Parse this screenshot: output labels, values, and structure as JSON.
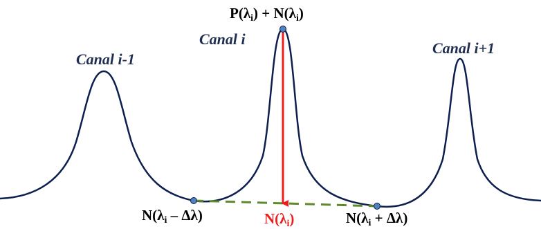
{
  "colors": {
    "spectrum_curve": "#0d1f4f",
    "channel_label": "#1f2d4f",
    "signal_arrow": "#ee1c1c",
    "noise_line": "#5e8a2c",
    "marker": "#4f81bd",
    "text": "#000000",
    "noise_label": "#ee1c1c"
  },
  "channels": [
    {
      "label": "Canal i-1"
    },
    {
      "label": "Canal i"
    },
    {
      "label": "Canal i+1"
    }
  ],
  "annotations": {
    "peak": {
      "p_open": "P(λ",
      "p_sub": "i",
      "p_close": ")",
      "plus": " + ",
      "n_open": "N(λ",
      "n_sub": "i",
      "n_close": ")"
    },
    "noise_left": {
      "open": "N(λ",
      "sub": "i",
      "rest": " – Δλ)"
    },
    "noise_center": {
      "open": "N(λ",
      "sub": "i",
      "close": ")"
    },
    "noise_right": {
      "open": "N(λ",
      "sub": "i",
      "rest": " + Δλ)"
    }
  }
}
